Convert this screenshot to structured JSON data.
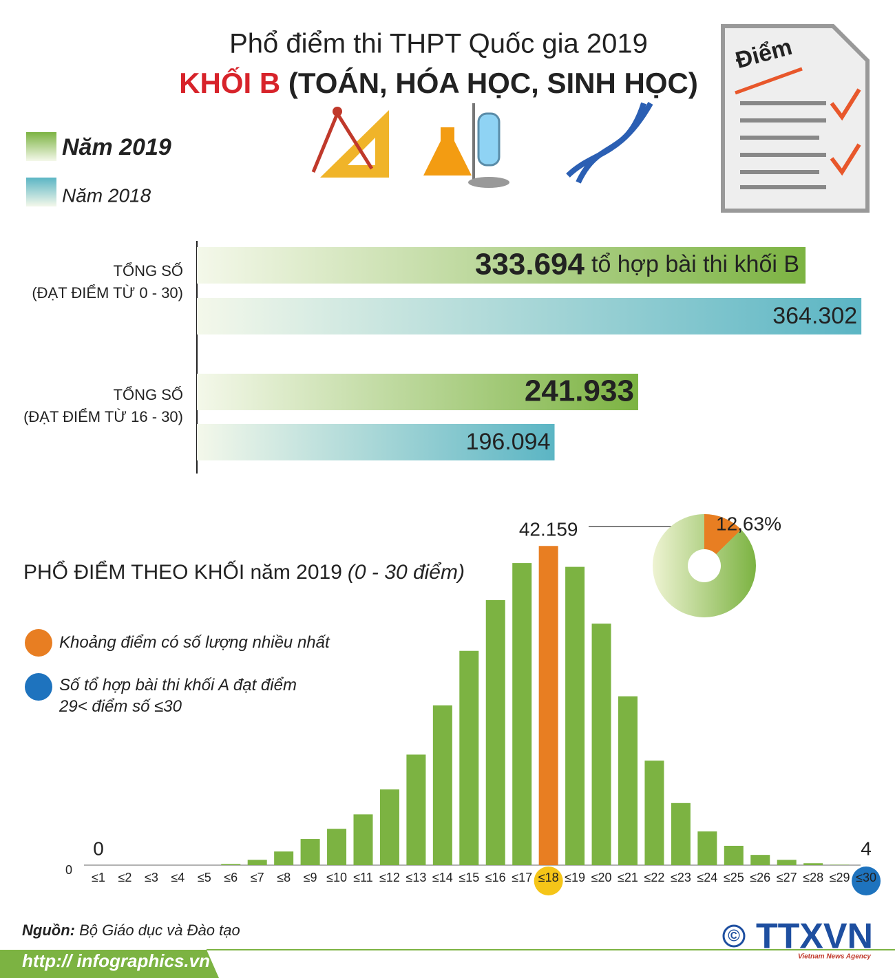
{
  "header": {
    "title": "Phổ điểm thi THPT Quốc gia 2019",
    "block": "KHỐI B",
    "subjects": "(TOÁN, HÓA HỌC, SINH HỌC)",
    "icon_label": "Điểm"
  },
  "chart_data": [
    {
      "type": "hbar",
      "categories": [
        "TỔNG SỐ\n(ĐẠT ĐIỂM TỪ 0 - 30)",
        "TỔNG SỐ\n(ĐẠT ĐIỂM TỪ 16 - 30)"
      ],
      "series": [
        {
          "name": "Năm 2019",
          "color": "#7cb342",
          "values": [
            333694,
            241933
          ],
          "value_labels": [
            "333.694",
            "241.933"
          ]
        },
        {
          "name": "Năm 2018",
          "color": "#5bb5c4",
          "values": [
            364302,
            196094
          ],
          "value_labels": [
            "364.302",
            "196.094"
          ]
        }
      ],
      "annotation": "tổ hợp bài thi khối B",
      "xlim": [
        0,
        365000
      ]
    },
    {
      "type": "bar",
      "title": "PHỔ ĐIỂM THEO KHỐI năm 2019",
      "subtitle": "(0 - 30 điểm)",
      "categories": [
        "≤1",
        "≤2",
        "≤3",
        "≤4",
        "≤5",
        "≤6",
        "≤7",
        "≤8",
        "≤9",
        "≤10",
        "≤11",
        "≤12",
        "≤13",
        "≤14",
        "≤15",
        "≤16",
        "≤17",
        "≤18",
        "≤19",
        "≤20",
        "≤21",
        "≤22",
        "≤23",
        "≤24",
        "≤25",
        "≤26",
        "≤27",
        "≤28",
        "≤29",
        "≤30"
      ],
      "values": [
        0,
        0,
        0,
        0,
        0,
        150,
        700,
        1800,
        3450,
        4800,
        6700,
        10000,
        14600,
        21100,
        28300,
        35000,
        39900,
        42159,
        39400,
        31900,
        22300,
        13800,
        8200,
        4450,
        2550,
        1350,
        700,
        250,
        50,
        4
      ],
      "value_labels": [
        "0",
        null,
        null,
        null,
        null,
        null,
        null,
        null,
        null,
        null,
        null,
        null,
        null,
        null,
        null,
        null,
        null,
        "42.159",
        null,
        null,
        null,
        null,
        null,
        null,
        null,
        null,
        null,
        null,
        null,
        "4"
      ],
      "colors": [
        "#7cb342",
        "#7cb342",
        "#7cb342",
        "#7cb342",
        "#7cb342",
        "#7cb342",
        "#7cb342",
        "#7cb342",
        "#7cb342",
        "#7cb342",
        "#7cb342",
        "#7cb342",
        "#7cb342",
        "#7cb342",
        "#7cb342",
        "#7cb342",
        "#7cb342",
        "#e87e22",
        "#7cb342",
        "#7cb342",
        "#7cb342",
        "#7cb342",
        "#7cb342",
        "#7cb342",
        "#7cb342",
        "#7cb342",
        "#7cb342",
        "#7cb342",
        "#7cb342",
        "#7cb342"
      ],
      "tick_circle_colors": [
        null,
        null,
        null,
        null,
        null,
        null,
        null,
        null,
        null,
        null,
        null,
        null,
        null,
        null,
        null,
        null,
        null,
        "#f5c518",
        null,
        null,
        null,
        null,
        null,
        null,
        null,
        null,
        null,
        null,
        null,
        "#1e73be"
      ],
      "legend": [
        {
          "label": "Khoảng điểm có số lượng nhiều nhất",
          "color": "#e87e22"
        },
        {
          "label": "Số tổ hợp bài thi khối A đạt điểm\n29< điểm số ≤30",
          "color": "#1e73be"
        }
      ],
      "ylim": [
        0,
        45000
      ],
      "yticks": [
        0
      ]
    },
    {
      "type": "pie",
      "values": [
        12.63
      ],
      "value_labels": [
        "12,63%"
      ],
      "colors": [
        "#e87e22"
      ],
      "rest_color": "#8bc34a"
    }
  ],
  "footer": {
    "source_label": "Nguồn:",
    "source": "Bộ Giáo dục và Đào tạo",
    "url": "http:// infographics.vn",
    "copyright": "©",
    "logo": "TTXVN",
    "logo_sub": "Vietnam News Agency"
  }
}
